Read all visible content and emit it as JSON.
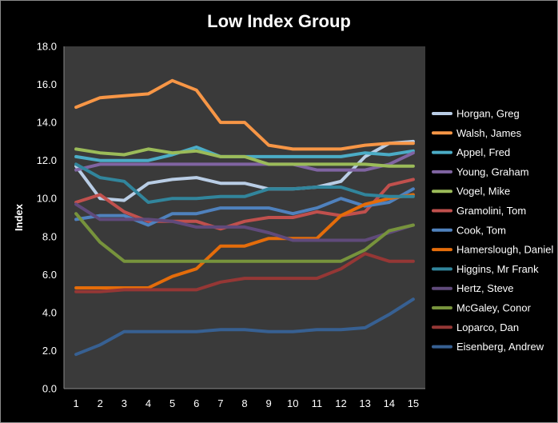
{
  "chart_data": {
    "type": "line",
    "title": "Low Index Group",
    "xlabel": "",
    "ylabel": "Index",
    "x": [
      1,
      2,
      3,
      4,
      5,
      6,
      7,
      8,
      9,
      10,
      11,
      12,
      13,
      14,
      15
    ],
    "ylim": [
      0,
      18
    ],
    "ytick_step": 2,
    "ytick_decimals": 1,
    "grid": false,
    "legend_position": "right",
    "colors": {
      "background": "#000000",
      "plot_area": "#3a3a3a",
      "text": "#ffffff",
      "axis": "#8a8a8a"
    },
    "series": [
      {
        "name": "Horgan, Greg",
        "color": "#b9cde5",
        "values": [
          11.7,
          10.0,
          9.9,
          10.8,
          11.0,
          11.1,
          10.8,
          10.8,
          10.5,
          10.5,
          10.6,
          10.9,
          12.2,
          12.9,
          13.0
        ]
      },
      {
        "name": "Walsh, James",
        "color": "#f79646",
        "values": [
          14.8,
          15.3,
          15.4,
          15.5,
          16.2,
          15.7,
          14.0,
          14.0,
          12.8,
          12.6,
          12.6,
          12.6,
          12.8,
          12.9,
          12.9
        ]
      },
      {
        "name": "Appel, Fred",
        "color": "#4bacc6",
        "values": [
          12.2,
          12.0,
          12.0,
          12.0,
          12.3,
          12.7,
          12.2,
          12.2,
          12.2,
          12.2,
          12.2,
          12.2,
          12.4,
          12.3,
          12.5
        ]
      },
      {
        "name": "Young, Graham",
        "color": "#8064a2",
        "values": [
          11.5,
          11.8,
          11.8,
          11.8,
          11.8,
          11.8,
          11.8,
          11.8,
          11.8,
          11.8,
          11.5,
          11.5,
          11.5,
          11.8,
          12.4
        ]
      },
      {
        "name": "Vogel, Mike",
        "color": "#9bbb59",
        "values": [
          12.6,
          12.4,
          12.3,
          12.6,
          12.4,
          12.5,
          12.2,
          12.2,
          11.8,
          11.8,
          11.8,
          11.8,
          11.8,
          11.7,
          11.7
        ]
      },
      {
        "name": "Gramolini, Tom",
        "color": "#c0504d",
        "values": [
          9.8,
          10.2,
          9.3,
          8.8,
          8.8,
          8.8,
          8.4,
          8.8,
          9.0,
          9.0,
          9.3,
          9.1,
          9.3,
          10.7,
          11.0
        ]
      },
      {
        "name": "Cook, Tom",
        "color": "#4f81bd",
        "values": [
          8.9,
          9.1,
          9.1,
          8.6,
          9.2,
          9.2,
          9.5,
          9.5,
          9.5,
          9.2,
          9.5,
          10.0,
          9.6,
          9.8,
          10.5
        ]
      },
      {
        "name": "Hamerslough, Daniel",
        "color": "#e46c0a",
        "values": [
          5.3,
          5.3,
          5.3,
          5.3,
          5.9,
          6.3,
          7.5,
          7.5,
          7.9,
          7.9,
          7.9,
          9.1,
          9.7,
          10.0,
          10.2
        ]
      },
      {
        "name": "Higgins, Mr Frank",
        "color": "#31859c",
        "values": [
          11.8,
          11.1,
          10.9,
          9.8,
          10.0,
          10.0,
          10.1,
          10.1,
          10.5,
          10.5,
          10.6,
          10.6,
          10.2,
          10.1,
          10.1
        ]
      },
      {
        "name": "Hertz, Steve",
        "color": "#604a7b",
        "values": [
          9.7,
          8.9,
          8.9,
          8.9,
          8.8,
          8.5,
          8.5,
          8.5,
          8.2,
          7.8,
          7.8,
          7.8,
          7.8,
          8.2,
          8.6
        ]
      },
      {
        "name": "McGaley, Conor",
        "color": "#77933c",
        "values": [
          9.2,
          7.7,
          6.7,
          6.7,
          6.7,
          6.7,
          6.7,
          6.7,
          6.7,
          6.7,
          6.7,
          6.7,
          7.3,
          8.3,
          8.6
        ]
      },
      {
        "name": "Loparco, Dan",
        "color": "#953735",
        "values": [
          5.1,
          5.1,
          5.2,
          5.2,
          5.2,
          5.2,
          5.6,
          5.8,
          5.8,
          5.8,
          5.8,
          6.3,
          7.1,
          6.7,
          6.7
        ]
      },
      {
        "name": "Eisenberg, Andrew",
        "color": "#376092",
        "values": [
          1.8,
          2.3,
          3.0,
          3.0,
          3.0,
          3.0,
          3.1,
          3.1,
          3.0,
          3.0,
          3.1,
          3.1,
          3.2,
          3.9,
          4.7
        ]
      }
    ]
  }
}
